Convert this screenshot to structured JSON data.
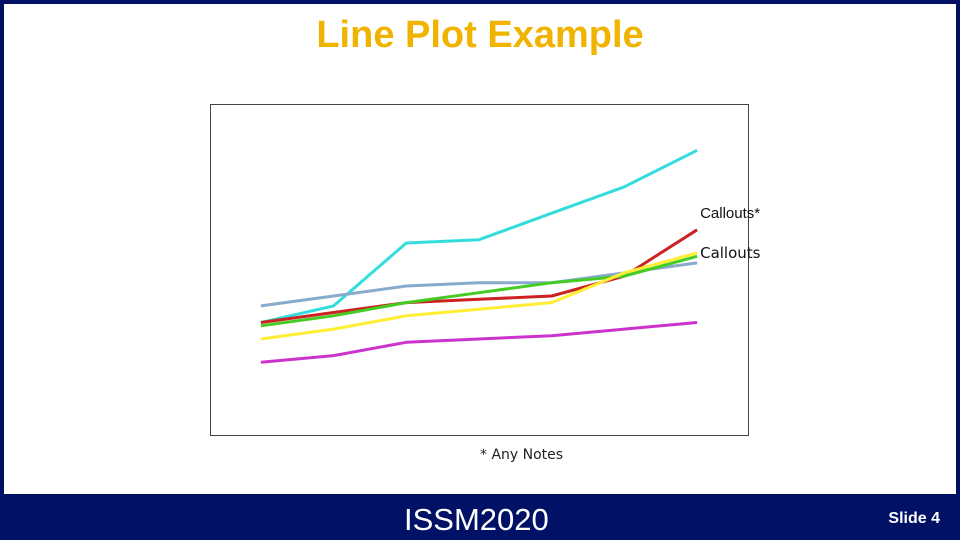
{
  "slide": {
    "title": "Line Plot Example",
    "note": "* Any Notes",
    "footer_brand": "ISSM2020",
    "slide_number": "Slide 4"
  },
  "colors": {
    "background": "#001166",
    "title": "#f0b400"
  },
  "chart_data": {
    "type": "line",
    "x": [
      1,
      2,
      3,
      4,
      5,
      6,
      7
    ],
    "xlim": [
      0.3,
      7.7
    ],
    "ylim": [
      0,
      100
    ],
    "grid": false,
    "legend": "none",
    "series": [
      {
        "color": "#33dddd",
        "values": [
          34,
          39,
          58,
          59,
          67,
          75,
          86
        ]
      },
      {
        "color": "#cc2222",
        "values": [
          34,
          37,
          40,
          41,
          42,
          48,
          62
        ]
      },
      {
        "color": "#88aacc",
        "values": [
          39,
          42,
          45,
          46,
          46,
          49,
          52
        ]
      },
      {
        "color": "#44cc22",
        "values": [
          33,
          36,
          40,
          43,
          46,
          48,
          54
        ]
      },
      {
        "color": "#ffee33",
        "values": [
          29,
          32,
          36,
          38,
          40,
          49,
          55
        ]
      },
      {
        "color": "#cc33cc",
        "values": [
          22,
          24,
          28,
          29,
          30,
          32,
          34
        ]
      }
    ],
    "annotations": [
      {
        "text": "Callouts*",
        "series_index": 0,
        "x": 7,
        "y": 67
      },
      {
        "text": "Callouts",
        "series_index": 4,
        "x": 7,
        "y": 55
      }
    ]
  }
}
